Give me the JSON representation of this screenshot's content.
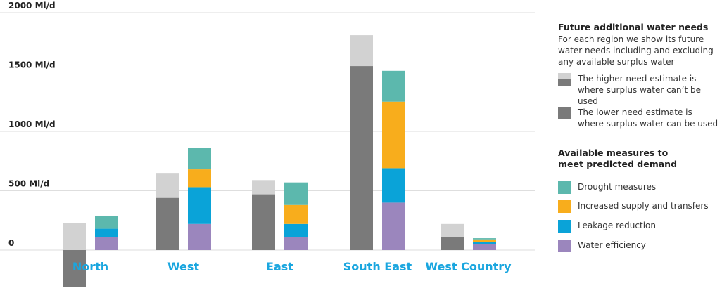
{
  "chart_data": {
    "type": "bar",
    "ylabels": [
      "2000 Ml/d",
      "1500 Ml/d",
      "1000 Ml/d",
      "500 Ml/d",
      "0"
    ],
    "ylim": [
      -310,
      2000
    ],
    "categories": [
      "North",
      "West",
      "East",
      "South East",
      "West Country"
    ],
    "need_series": [
      {
        "name": "The lower need estimate is where surplus water can be used",
        "values": [
          -310,
          440,
          470,
          1550,
          110
        ]
      },
      {
        "name": "The higher need estimate is where surplus water can’t be used",
        "values": [
          230,
          210,
          120,
          260,
          110
        ]
      }
    ],
    "measure_series": [
      {
        "name": "Water efficiency",
        "values": [
          110,
          220,
          110,
          400,
          50
        ]
      },
      {
        "name": "Leakage reduction",
        "values": [
          70,
          310,
          110,
          290,
          20
        ]
      },
      {
        "name": "Increased supply and transfers",
        "values": [
          0,
          150,
          160,
          560,
          20
        ]
      },
      {
        "name": "Drought measures",
        "values": [
          110,
          180,
          190,
          260,
          10
        ]
      }
    ],
    "colors": {
      "lower_need": "#7a7a7a",
      "higher_need": "#d2d2d2",
      "water_efficiency": "#9b86bd",
      "leakage_reduction": "#0aa3d8",
      "increased_supply": "#f8ad1c",
      "drought_measures": "#5cb8ad",
      "category_text": "#1aa6df"
    }
  },
  "legend": {
    "need_title": "Future additional water needs",
    "need_subtitle": "For each region we show its future water needs including and excluding any available surplus water",
    "higher_label": "The higher need estimate is where surplus water can’t be used",
    "lower_label": "The lower need estimate is where surplus water can be used",
    "measures_title": "Available measures to meet predicted demand",
    "drought_label": "Drought measures",
    "supply_label": "Increased supply and transfers",
    "leakage_label": "Leakage reduction",
    "efficiency_label": "Water efficiency"
  }
}
